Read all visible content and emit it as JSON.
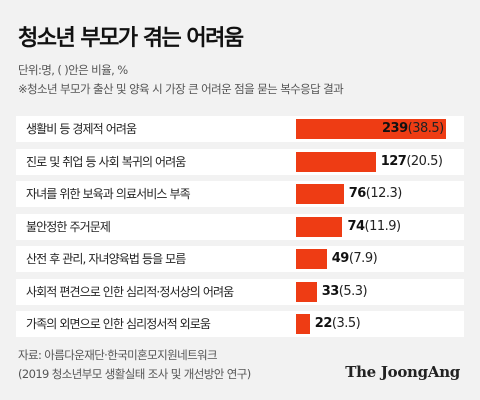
{
  "title": "청소년 부모가 겪는 어려움",
  "unit_note": "단위:명, ( )안은 비율, %",
  "note": "※청소년 부모가 출산 및 양육 시 가장 큰 어려운 점을 묻는 복수응답 결과",
  "source_line1": "자료: 아름다운재단·한국미혼모지원네트워크",
  "source_line2": "(2019 청소년부모 생활실태 조사 및 개선방안 연구)",
  "logo": "The JoongAng",
  "colors": {
    "bar": "#ee3c14",
    "background": "#f2f2f2",
    "row": "#ffffff"
  },
  "chart_data": {
    "type": "bar",
    "orientation": "horizontal",
    "categories": [
      "생활비 등 경제적 어려움",
      "진로 및 취업 등 사회 복귀의 어려움",
      "자녀를 위한 보육과 의료서비스 부족",
      "불안정한 주거문제",
      "산전 후 관리, 자녀양육법 등을 모름",
      "사회적 편견으로 인한 심리적·정서상의 어려움",
      "가족의 외면으로 인한 심리정서적 외로움"
    ],
    "values": [
      239,
      127,
      76,
      74,
      49,
      33,
      22
    ],
    "percents": [
      "38.5",
      "20.5",
      "12.3",
      "11.9",
      "7.9",
      "5.3",
      "3.5"
    ],
    "grid": false,
    "legend": "none"
  }
}
